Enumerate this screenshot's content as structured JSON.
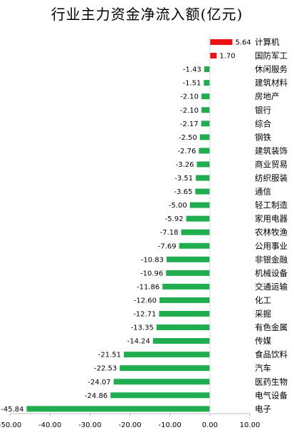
{
  "chart_data": {
    "type": "bar",
    "orientation": "horizontal",
    "title": "行业主力资金净流入额(亿元)",
    "xlabel": "",
    "ylabel": "",
    "xlim": [
      -50,
      10
    ],
    "xticks": [
      "-50.00",
      "-40.00",
      "-30.00",
      "-20.00",
      "-10.00",
      "0.00",
      "10.00"
    ],
    "tick_values": [
      -50,
      -40,
      -30,
      -20,
      -10,
      0,
      10
    ],
    "grid": false,
    "legend": "none",
    "colors": {
      "positive": "#ee1111",
      "negative": "#1fad4f"
    },
    "categories": [
      "计算机",
      "国防军工",
      "休闲服务",
      "建筑材料",
      "房地产",
      "银行",
      "综合",
      "钢铁",
      "建筑装饰",
      "商业贸易",
      "纺织服装",
      "通信",
      "轻工制造",
      "家用电器",
      "农林牧渔",
      "公用事业",
      "非银金融",
      "机械设备",
      "交通运输",
      "化工",
      "采掘",
      "有色金属",
      "传媒",
      "食品饮料",
      "汽车",
      "医药生物",
      "电气设备",
      "电子"
    ],
    "values": [
      5.64,
      1.7,
      -1.43,
      -1.51,
      -2.1,
      -2.1,
      -2.17,
      -2.5,
      -2.76,
      -3.26,
      -3.51,
      -3.65,
      -5.0,
      -5.92,
      -7.18,
      -7.69,
      -10.83,
      -10.96,
      -11.86,
      -12.6,
      -12.71,
      -13.35,
      -14.24,
      -21.51,
      -22.53,
      -24.07,
      -24.86,
      -45.84
    ],
    "value_labels": [
      "5.64",
      "1.70",
      "-1.43",
      "-1.51",
      "-2.10",
      "-2.10",
      "-2.17",
      "-2.50",
      "-2.76",
      "-3.26",
      "-3.51",
      "-3.65",
      "-5.00",
      "-5.92",
      "-7.18",
      "-7.69",
      "-10.83",
      "-10.96",
      "-11.86",
      "-12.60",
      "-12.71",
      "-13.35",
      "-14.24",
      "-21.51",
      "-22.53",
      "-24.07",
      "-24.86",
      "-45.84"
    ]
  }
}
